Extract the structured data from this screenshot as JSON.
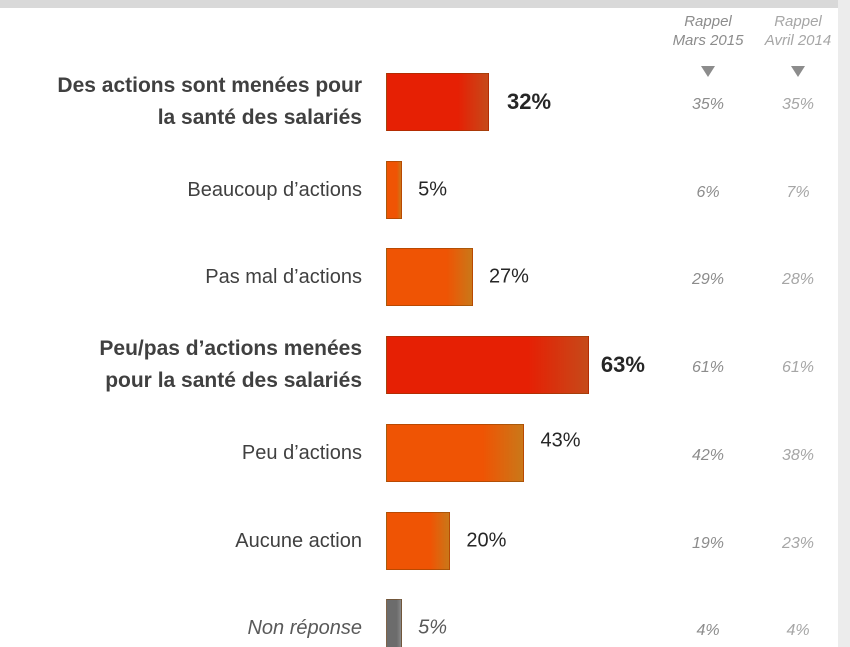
{
  "chart_data": {
    "type": "bar",
    "orientation": "horizontal",
    "categories": [
      "Des actions sont menées pour la santé des salariés",
      "Beaucoup d’actions",
      "Pas mal d’actions",
      "Peu/pas d’actions menées pour la santé des salariés",
      "Peu d’actions",
      "Aucune action",
      "Non réponse"
    ],
    "label_styles": [
      "bold",
      "normal",
      "normal",
      "bold",
      "normal",
      "normal",
      "italic"
    ],
    "values": [
      32,
      5,
      27,
      63,
      43,
      20,
      5
    ],
    "value_labels": [
      "32%",
      "5%",
      "27%",
      "63%",
      "43%",
      "20%",
      "5%"
    ],
    "colors": [
      "#f25a1f",
      "#f7921e",
      "#f7921e",
      "#f25a1f",
      "#f7921e",
      "#f7921e",
      "#a6a6a6"
    ],
    "comparisons": [
      {
        "name": "Rappel Mars 2015",
        "color": "#8c8c8c",
        "values": [
          35,
          6,
          29,
          61,
          42,
          19,
          4
        ],
        "value_labels": [
          "35%",
          "6%",
          "29%",
          "61%",
          "42%",
          "19%",
          "4%"
        ]
      },
      {
        "name": "Rappel Avril 2014",
        "color": "#a6a6a6",
        "values": [
          35,
          7,
          28,
          61,
          38,
          23,
          4
        ],
        "value_labels": [
          "35%",
          "7%",
          "28%",
          "61%",
          "38%",
          "23%",
          "4%"
        ]
      }
    ]
  }
}
